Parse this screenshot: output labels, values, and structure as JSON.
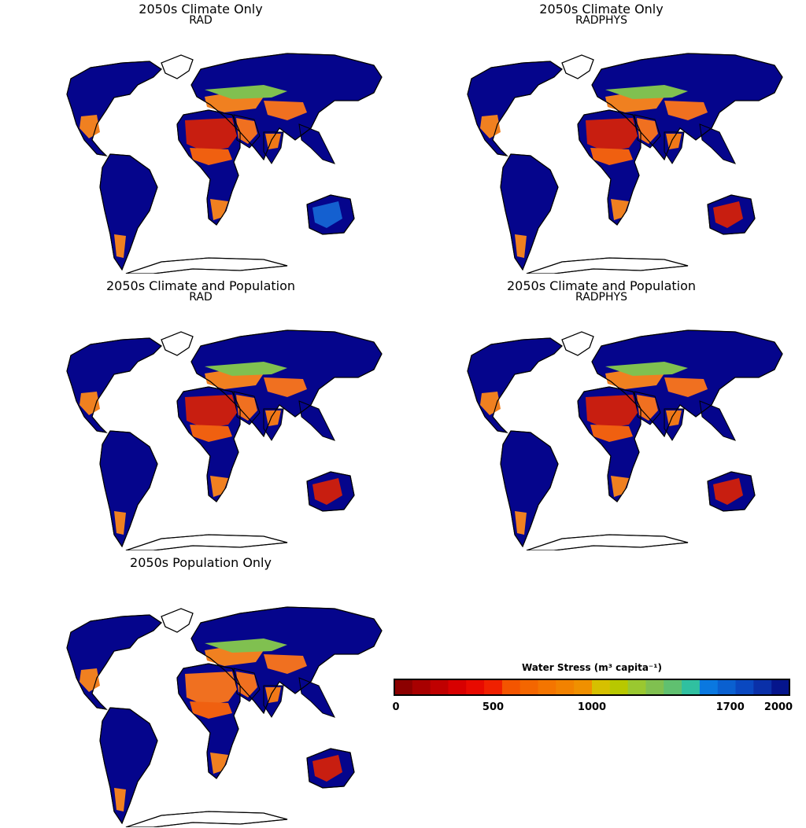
{
  "panels": [
    {
      "title": "2050s Climate Only",
      "subtitle": "RAD",
      "africa": "#c81e10",
      "sahel": "#f06010",
      "europe": "#f08020",
      "mideast": "#f07020",
      "india": "#f07818",
      "australia": "#1460d0",
      "sa_south": "#f08020",
      "africa_south": "#f08020"
    },
    {
      "title": "2050s Climate Only",
      "subtitle": "RADPHYS",
      "africa": "#c81e10",
      "sahel": "#f06010",
      "europe": "#f08020",
      "mideast": "#f07020",
      "india": "#f07818",
      "australia": "#c81e10",
      "sa_south": "#f08020",
      "africa_south": "#f08020"
    },
    {
      "title": "2050s Climate and Population",
      "subtitle": "RAD",
      "africa": "#c81e10",
      "sahel": "#f06010",
      "europe": "#f08020",
      "mideast": "#f07020",
      "india": "#f07818",
      "australia": "#c81e10",
      "sa_south": "#f08020",
      "africa_south": "#f08020"
    },
    {
      "title": "2050s Climate and Population",
      "subtitle": "RADPHYS",
      "africa": "#c81e10",
      "sahel": "#f06010",
      "europe": "#f08020",
      "mideast": "#f07020",
      "india": "#f07818",
      "australia": "#c81e10",
      "sa_south": "#f08020",
      "africa_south": "#f08020"
    },
    {
      "title": "2050s Population Only",
      "subtitle": "",
      "africa": "#f07020",
      "sahel": "#f06010",
      "europe": "#f08020",
      "mideast": "#f07020",
      "india": "#f07818",
      "australia": "#c81e10",
      "sa_south": "#f08020",
      "africa_south": "#f08020"
    }
  ],
  "legend": {
    "title": "Water Stress (m³ capita⁻¹)",
    "colors": [
      "#8c0000",
      "#a80000",
      "#c00000",
      "#d80000",
      "#e80a00",
      "#f02000",
      "#f45500",
      "#f46600",
      "#f47500",
      "#f28200",
      "#f09000",
      "#d6c000",
      "#b8c800",
      "#9ac830",
      "#80c050",
      "#60c070",
      "#30c0a0",
      "#0a78e0",
      "#0a60d0",
      "#0a48c0",
      "#0a30a8",
      "#05158c"
    ],
    "ticks": [
      {
        "label": "0",
        "value": 0
      },
      {
        "label": "500",
        "value": 500
      },
      {
        "label": "1000",
        "value": 1000
      },
      {
        "label": "1700",
        "value": 1700
      },
      {
        "label": "2000",
        "value": 2000
      }
    ],
    "range": [
      0,
      2000
    ]
  },
  "colors": {
    "land_default": "#05058c",
    "greenland": "#ffffff",
    "outline": "#000000",
    "background": "#ffffff"
  }
}
